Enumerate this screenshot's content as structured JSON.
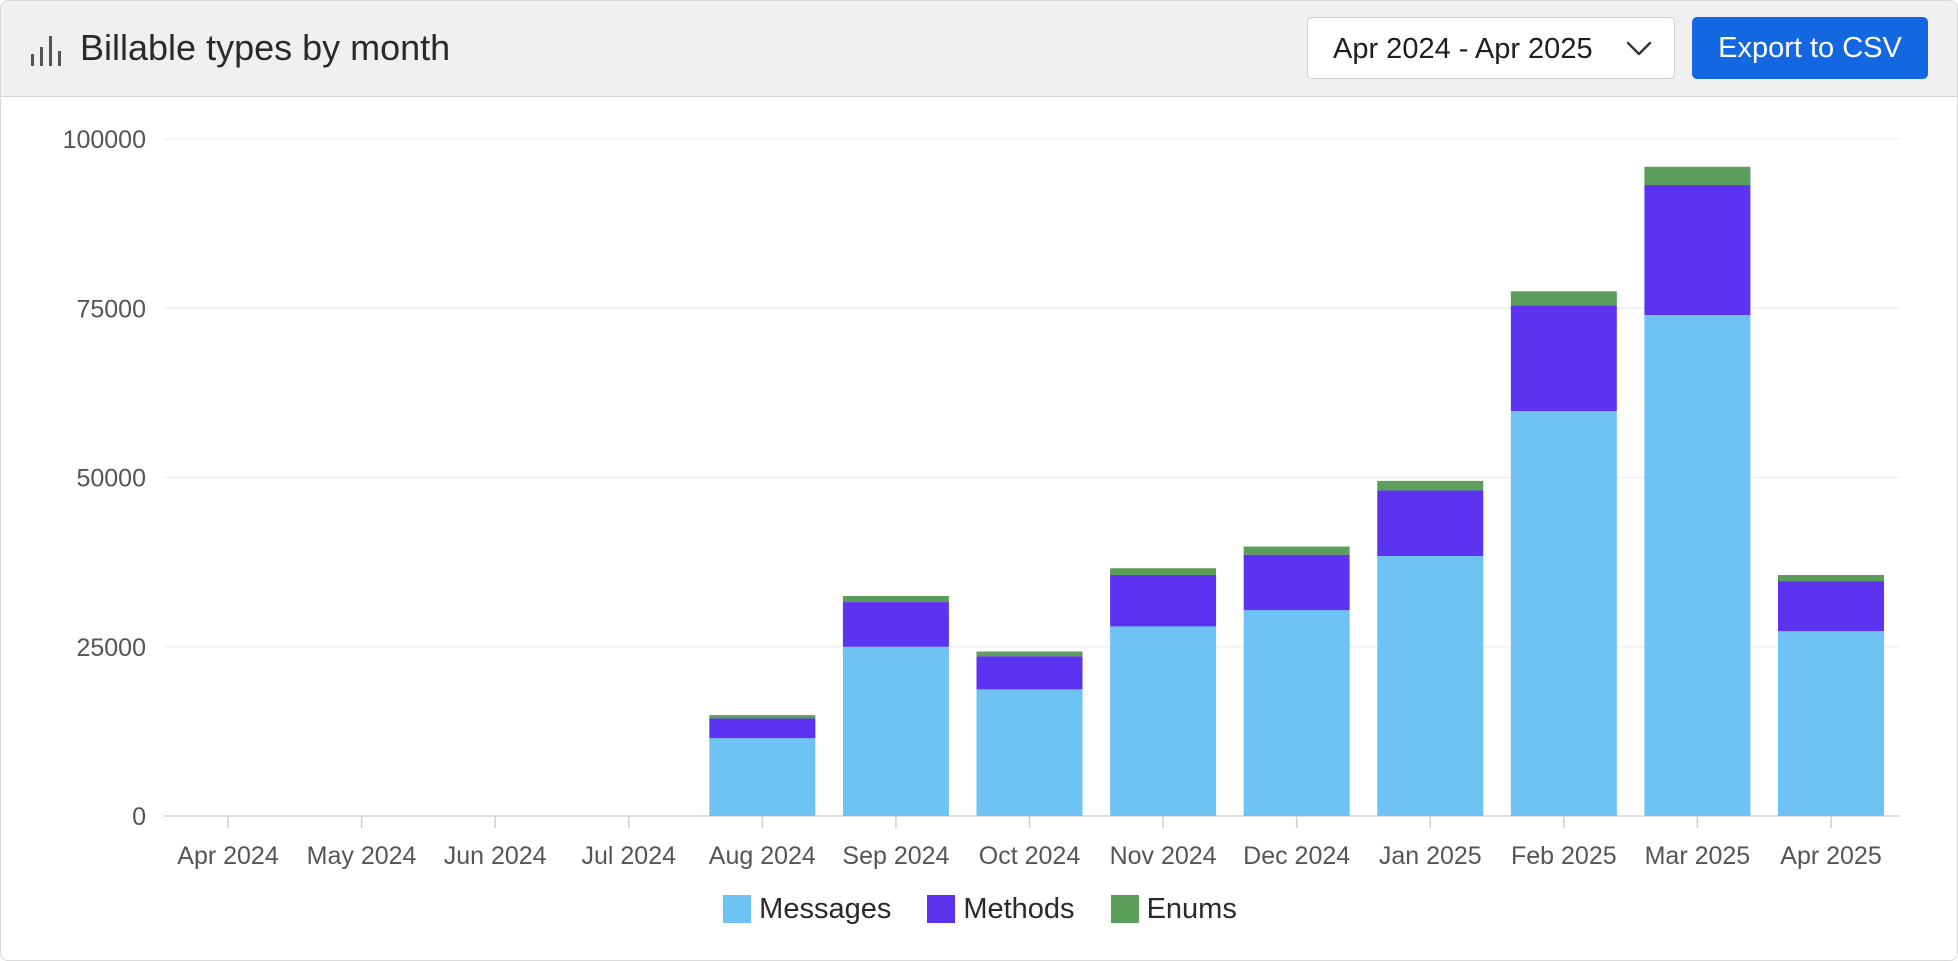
{
  "header": {
    "title": "Billable types by month",
    "icon": "bar-chart-icon",
    "date_range": "Apr 2024 - Apr 2025",
    "export_label": "Export to CSV",
    "accent_color": "#1368e1"
  },
  "chart_data": {
    "type": "bar",
    "stacked": true,
    "categories": [
      "Apr 2024",
      "May 2024",
      "Jun 2024",
      "Jul 2024",
      "Aug 2024",
      "Sep 2024",
      "Oct 2024",
      "Nov 2024",
      "Dec 2024",
      "Jan 2025",
      "Feb 2025",
      "Mar 2025",
      "Apr 2025"
    ],
    "series": [
      {
        "name": "Messages",
        "color": "#6ec3f4",
        "values": [
          0,
          0,
          0,
          0,
          11500,
          25000,
          18700,
          28000,
          30400,
          38400,
          59800,
          74000,
          27300
        ]
      },
      {
        "name": "Methods",
        "color": "#5b33f1",
        "values": [
          0,
          0,
          0,
          0,
          2900,
          6600,
          4900,
          7600,
          8200,
          9700,
          15600,
          19200,
          7400
        ]
      },
      {
        "name": "Enums",
        "color": "#5a9e5a",
        "values": [
          0,
          0,
          0,
          0,
          500,
          900,
          700,
          1000,
          1200,
          1400,
          2100,
          2700,
          900
        ]
      }
    ],
    "yticks": [
      0,
      25000,
      50000,
      75000,
      100000
    ],
    "ylim": [
      0,
      100000
    ],
    "grid": true,
    "legend_position": "bottom-center"
  }
}
